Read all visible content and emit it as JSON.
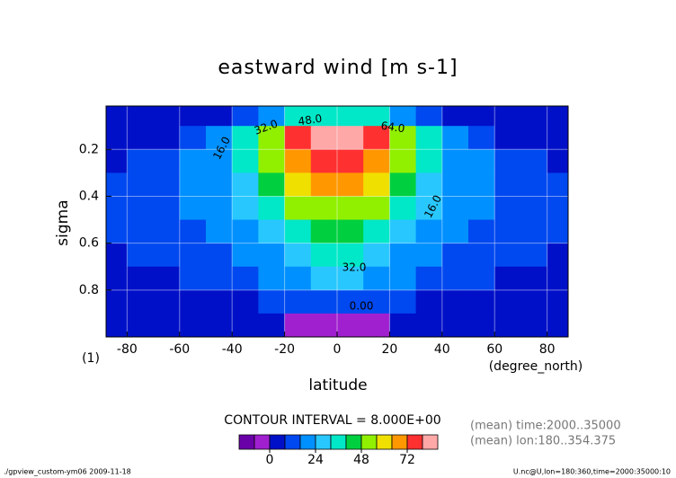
{
  "chart_data": {
    "type": "contour",
    "title": "eastward wind [m s-1]",
    "x_label": "latitude",
    "x_unit": "(degree_north)",
    "y_label": "sigma",
    "y_unit": "(1)",
    "x": [
      -85,
      -75,
      -65,
      -55,
      -45,
      -35,
      -25,
      -15,
      -5,
      5,
      15,
      25,
      35,
      45,
      55,
      65,
      75,
      85
    ],
    "y": [
      0.05,
      0.15,
      0.25,
      0.35,
      0.45,
      0.55,
      0.65,
      0.75,
      0.85,
      0.95
    ],
    "z": [
      [
        0,
        0,
        2,
        4,
        6,
        12,
        22,
        32,
        38,
        38,
        32,
        22,
        12,
        6,
        4,
        2,
        0,
        0
      ],
      [
        2,
        2,
        4,
        8,
        16,
        32,
        54,
        74,
        84,
        84,
        74,
        54,
        32,
        16,
        8,
        4,
        2,
        2
      ],
      [
        6,
        8,
        12,
        16,
        20,
        34,
        52,
        70,
        78,
        78,
        70,
        52,
        34,
        20,
        16,
        12,
        8,
        6
      ],
      [
        8,
        10,
        12,
        16,
        20,
        30,
        44,
        58,
        66,
        66,
        58,
        44,
        30,
        20,
        16,
        12,
        10,
        8
      ],
      [
        8,
        10,
        12,
        16,
        18,
        24,
        36,
        48,
        54,
        54,
        48,
        36,
        24,
        18,
        16,
        12,
        10,
        8
      ],
      [
        8,
        10,
        12,
        14,
        16,
        20,
        28,
        38,
        44,
        44,
        38,
        28,
        20,
        16,
        14,
        12,
        10,
        8
      ],
      [
        6,
        8,
        10,
        12,
        14,
        16,
        22,
        30,
        34,
        34,
        30,
        22,
        16,
        14,
        12,
        10,
        8,
        6
      ],
      [
        4,
        6,
        6,
        8,
        10,
        12,
        16,
        22,
        24,
        24,
        22,
        16,
        12,
        10,
        8,
        6,
        6,
        4
      ],
      [
        2,
        2,
        2,
        2,
        4,
        6,
        8,
        10,
        10,
        10,
        10,
        8,
        6,
        4,
        2,
        2,
        2,
        2
      ],
      [
        0,
        0,
        0,
        0,
        2,
        4,
        2,
        -4,
        -6,
        -6,
        -4,
        2,
        4,
        2,
        0,
        0,
        0,
        0
      ]
    ],
    "xlim": [
      -88,
      88
    ],
    "ylim": [
      1.0,
      0.015
    ],
    "xticks": [
      -80,
      -60,
      -40,
      -20,
      0,
      20,
      40,
      60,
      80
    ],
    "yticks": [
      0.2,
      0.4,
      0.6,
      0.8
    ],
    "grid": true,
    "contour_labels": [
      "16.0",
      "32.0",
      "48.0",
      "64.0",
      "16.0",
      "32.0",
      "0.00"
    ],
    "contour_interval": "CONTOUR INTERVAL = 8.000E+00",
    "colorbar": {
      "levels": [
        -16,
        -8,
        0,
        8,
        16,
        24,
        32,
        40,
        48,
        56,
        64,
        72,
        80,
        88
      ],
      "colors": [
        "#6a00a8",
        "#a020d0",
        "#0010c8",
        "#0048f0",
        "#0090ff",
        "#28c8ff",
        "#00e8c8",
        "#00d040",
        "#90f000",
        "#f0e000",
        "#ff9800",
        "#ff3030",
        "#ffa8a8"
      ],
      "ticks": [
        0,
        24,
        48,
        72
      ]
    },
    "annotations": [
      "(mean) time:2000..35000",
      "(mean) lon:180..354.375"
    ],
    "footer_left": "./gpview_custom-ym06  2009-11-18",
    "footer_right": "U.nc@U,lon=180:360,time=2000:35000:10"
  }
}
